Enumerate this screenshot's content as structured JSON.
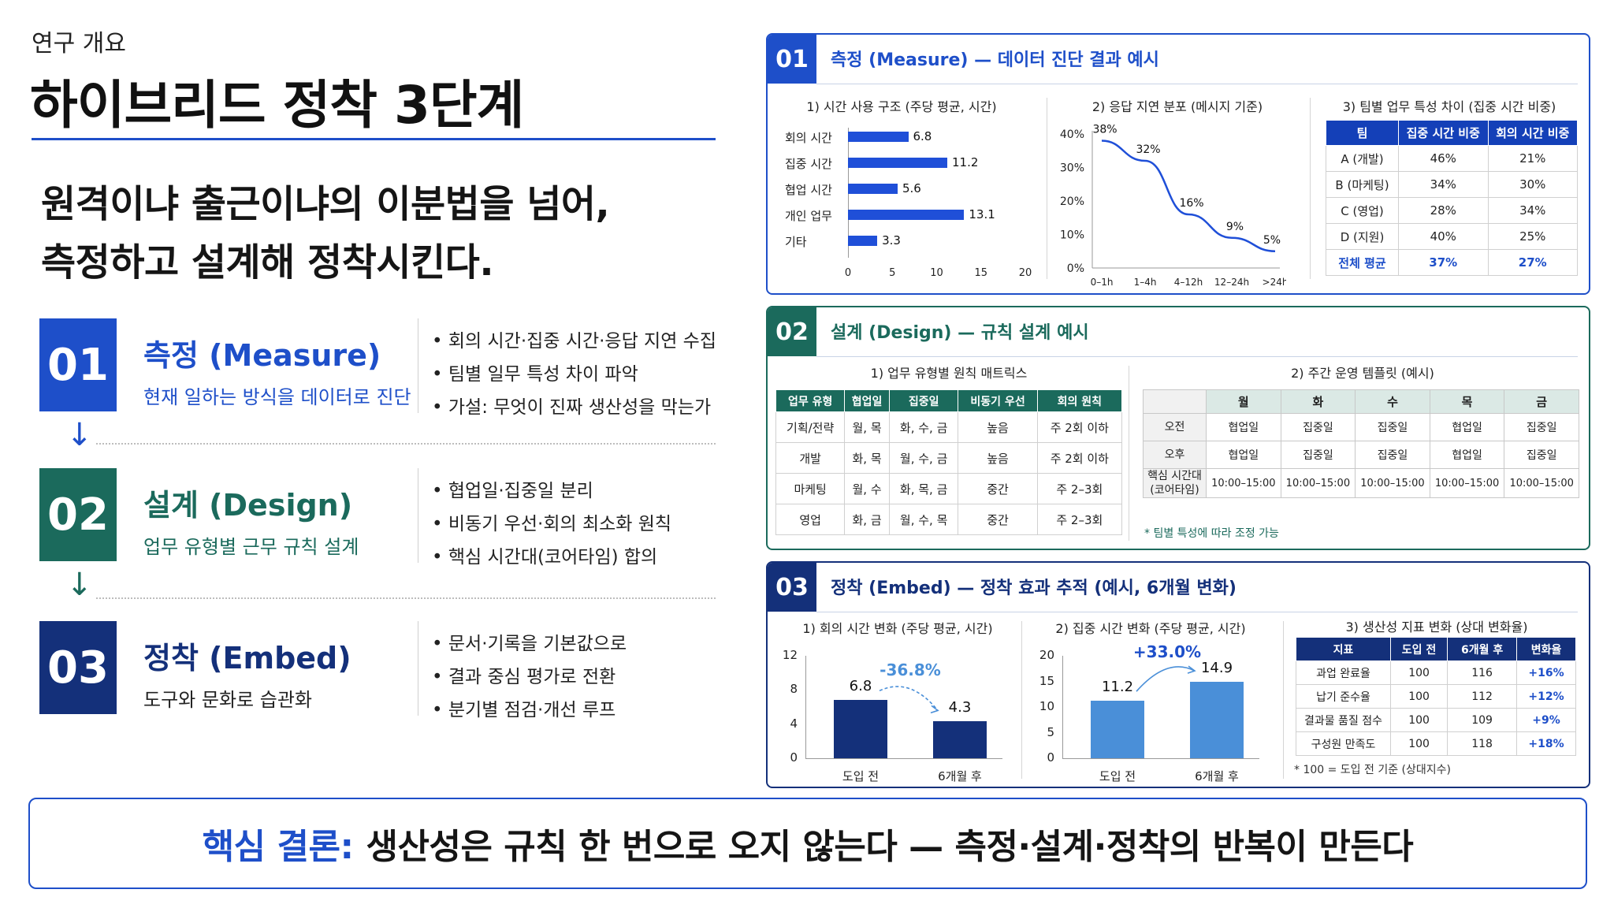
{
  "header": {
    "eyebrow": "연구 개요",
    "title": "하이브리드 정착 3단계",
    "headline_line1": "원격이냐 출근이냐의 이분법을 넘어,",
    "headline_line2": "측정하고 설계해 정착시킨다."
  },
  "steps": [
    {
      "num": "01",
      "title": "측정 (Measure)",
      "subtitle": "현재 일하는 방식을 데이터로 진단",
      "color": "#1e4fc9",
      "bullets": [
        "회의 시간·집중 시간·응답 지연 수집",
        "팀별 일무 특성 차이 파악",
        "가설: 무엇이 진짜 생산성을 막는가"
      ]
    },
    {
      "num": "02",
      "title": "설계 (Design)",
      "subtitle": "업무 유형별 근무 규칙 설계",
      "color": "#1b6a5c",
      "bullets": [
        "협업일·집중일 분리",
        "비동기 우선·회의 최소화 원칙",
        "핵심 시간대(코어타임) 합의"
      ]
    },
    {
      "num": "03",
      "title": "정착 (Embed)",
      "subtitle": "도구와 문화로 습관화",
      "color": "#14307a",
      "bullets": [
        "문서·기록을 기본값으로",
        "결과 중심 평가로 전환",
        "분기별 점검·개선 루프"
      ]
    }
  ],
  "panel1": {
    "num": "01",
    "title": "측정 (Measure) — 데이터 진단 결과 예시",
    "time_usage": {
      "title": "1) 시간 사용 구조 (주당 평균, 시간)",
      "categories": [
        "회의 시간",
        "집중 시간",
        "협업 시간",
        "개인 업무",
        "기타"
      ],
      "values": [
        6.8,
        11.2,
        5.6,
        13.1,
        3.3
      ],
      "value_labels": [
        "6.8",
        "11.2",
        "5.6",
        "13.1",
        "3.3"
      ],
      "ticks": [
        "0",
        "5",
        "10",
        "15",
        "20"
      ]
    },
    "latency": {
      "title": "2) 응답 지연 분포 (메시지 기준)",
      "categories": [
        "0–1h",
        "1–4h",
        "4–12h",
        "12–24h",
        ">24h"
      ],
      "values": [
        38,
        32,
        16,
        9,
        5
      ],
      "value_labels": [
        "38%",
        "32%",
        "16%",
        "9%",
        "5%"
      ],
      "yticks": [
        "40%",
        "30%",
        "20%",
        "10%",
        "0%"
      ]
    },
    "team_table": {
      "title": "3) 팀별 업무 특성 차이 (집중 시간 비중)",
      "headers": [
        "팀",
        "집중 시간 비중",
        "회의 시간 비중"
      ],
      "rows": [
        [
          "A (개발)",
          "46%",
          "21%"
        ],
        [
          "B (마케팅)",
          "34%",
          "30%"
        ],
        [
          "C (영업)",
          "28%",
          "34%"
        ],
        [
          "D (지원)",
          "40%",
          "25%"
        ]
      ],
      "avg": [
        "전체 평균",
        "37%",
        "27%"
      ]
    }
  },
  "panel2": {
    "num": "02",
    "title": "설계 (Design) — 규칙 설계 예시",
    "matrix": {
      "title": "1) 업무 유형별 원칙 매트릭스",
      "headers": [
        "업무 유형",
        "협업일",
        "집중일",
        "비동기 우선",
        "회의 원칙"
      ],
      "rows": [
        [
          "기획/전략",
          "월, 목",
          "화, 수, 금",
          "높음",
          "주 2회 이하"
        ],
        [
          "개발",
          "화, 목",
          "월, 수, 금",
          "높음",
          "주 2회 이하"
        ],
        [
          "마케팅",
          "월, 수",
          "화, 목, 금",
          "중간",
          "주 2–3회"
        ],
        [
          "영업",
          "화, 금",
          "월, 수, 목",
          "중간",
          "주 2–3회"
        ]
      ]
    },
    "template": {
      "title": "2) 주간 운영 템플릿 (예시)",
      "days": [
        "월",
        "화",
        "수",
        "목",
        "금"
      ],
      "rows": [
        {
          "label": "오전",
          "cells": [
            "협업일",
            "집중일",
            "집중일",
            "협업일",
            "집중일"
          ]
        },
        {
          "label": "오후",
          "cells": [
            "협업일",
            "집중일",
            "집중일",
            "협업일",
            "집중일"
          ]
        },
        {
          "label": "핵심 시간대\n(코어타임)",
          "cells": [
            "10:00–15:00",
            "10:00–15:00",
            "10:00–15:00",
            "10:00–15:00",
            "10:00–15:00"
          ]
        }
      ],
      "note": "* 팀별 특성에 따라 조정 가능"
    }
  },
  "panel3": {
    "num": "03",
    "title": "정착 (Embed) — 정착 효과 추적 (예시, 6개월 변화)",
    "meeting": {
      "title": "1) 회의 시간 변화 (주당 평균, 시간)",
      "categories": [
        "도입 전",
        "6개월 후"
      ],
      "values": [
        6.8,
        4.3
      ],
      "value_labels": [
        "6.8",
        "4.3"
      ],
      "change": "-36.8%",
      "yticks": [
        "12",
        "8",
        "4",
        "0"
      ],
      "ymax": 12
    },
    "focus": {
      "title": "2) 집중 시간 변화 (주당 평균, 시간)",
      "categories": [
        "도입 전",
        "6개월 후"
      ],
      "values": [
        11.2,
        14.9
      ],
      "value_labels": [
        "11.2",
        "14.9"
      ],
      "change": "+33.0%",
      "yticks": [
        "20",
        "15",
        "10",
        "5",
        "0"
      ],
      "ymax": 20
    },
    "productivity": {
      "title": "3) 생산성 지표 변화 (상대 변화율)",
      "headers": [
        "지표",
        "도입 전",
        "6개월 후",
        "변화율"
      ],
      "rows": [
        [
          "과업 완료율",
          "100",
          "116",
          "+16%"
        ],
        [
          "납기 준수율",
          "100",
          "112",
          "+12%"
        ],
        [
          "결과물 품질 점수",
          "100",
          "109",
          "+9%"
        ],
        [
          "구성원 만족도",
          "100",
          "118",
          "+18%"
        ]
      ],
      "note": "* 100 = 도입 전 기준 (상대지수)"
    }
  },
  "conclusion": {
    "label": "핵심 결론:",
    "text": "생산성은 규칙 한 번으로 오지 않는다 — 측정·설계·정착의 반복이 만든다"
  },
  "colors": {
    "blue": "#1e4fc9",
    "teal": "#1b6a5c",
    "navy": "#14307a",
    "bar_blue": "#1f4fd8",
    "light_blue": "#4a8fd8"
  }
}
